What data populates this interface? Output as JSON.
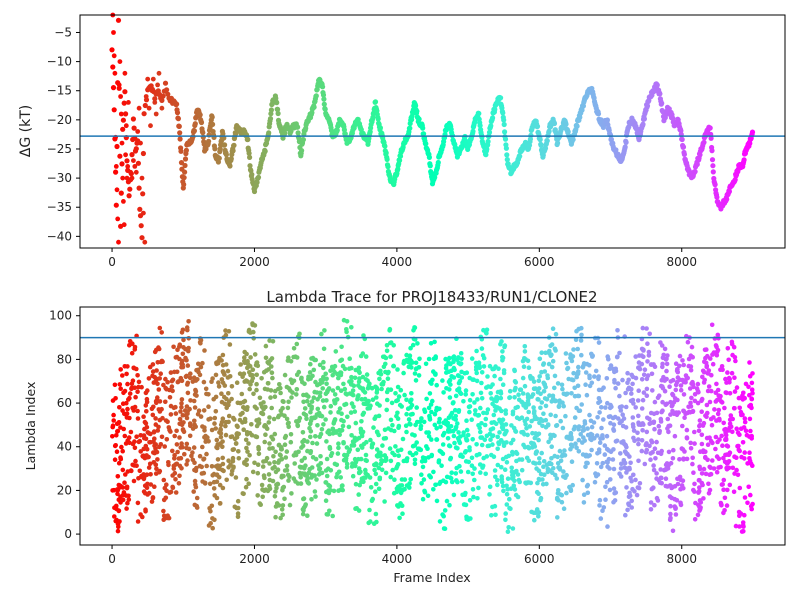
{
  "chart_data": [
    {
      "type": "scatter",
      "title": "",
      "xlabel": "",
      "ylabel": "ΔG (kT)",
      "xlim": [
        -450,
        9450
      ],
      "ylim": [
        -42,
        -2
      ],
      "xticks": [
        0,
        2000,
        4000,
        6000,
        8000
      ],
      "yticks": [
        -5,
        -10,
        -15,
        -20,
        -25,
        -30,
        -35,
        -40
      ],
      "hline": -22.8,
      "hline_color": "#1f77b4",
      "colormap": "rainbow",
      "color_encodes": "frame index (late = violet, early = red)",
      "trace_points": [
        [
          0,
          -8
        ],
        [
          30,
          -18
        ],
        [
          60,
          -35
        ],
        [
          90,
          -3
        ],
        [
          120,
          -38
        ],
        [
          150,
          -22
        ],
        [
          180,
          -15
        ],
        [
          210,
          -27
        ],
        [
          240,
          -33
        ],
        [
          270,
          -29
        ],
        [
          300,
          -20
        ],
        [
          330,
          -25
        ],
        [
          360,
          -24
        ],
        [
          390,
          -35
        ],
        [
          420,
          -40
        ],
        [
          450,
          -19
        ],
        [
          500,
          -15
        ],
        [
          550,
          -14
        ],
        [
          600,
          -16
        ],
        [
          650,
          -15
        ],
        [
          700,
          -17
        ],
        [
          750,
          -14
        ],
        [
          800,
          -16
        ],
        [
          850,
          -17
        ],
        [
          900,
          -17
        ],
        [
          950,
          -22
        ],
        [
          1000,
          -32
        ],
        [
          1050,
          -24
        ],
        [
          1100,
          -24
        ],
        [
          1150,
          -22
        ],
        [
          1200,
          -18
        ],
        [
          1250,
          -20
        ],
        [
          1300,
          -25
        ],
        [
          1350,
          -24
        ],
        [
          1400,
          -19
        ],
        [
          1450,
          -26
        ],
        [
          1500,
          -27
        ],
        [
          1550,
          -22
        ],
        [
          1600,
          -26
        ],
        [
          1650,
          -28
        ],
        [
          1700,
          -25
        ],
        [
          1750,
          -21
        ],
        [
          1800,
          -22
        ],
        [
          1850,
          -22
        ],
        [
          1900,
          -23
        ],
        [
          1950,
          -29
        ],
        [
          2000,
          -32
        ],
        [
          2050,
          -30
        ],
        [
          2100,
          -27
        ],
        [
          2150,
          -25
        ],
        [
          2200,
          -22
        ],
        [
          2250,
          -17
        ],
        [
          2300,
          -16
        ],
        [
          2350,
          -21
        ],
        [
          2400,
          -23
        ],
        [
          2450,
          -21
        ],
        [
          2500,
          -22
        ],
        [
          2550,
          -21
        ],
        [
          2600,
          -21
        ],
        [
          2650,
          -26
        ],
        [
          2700,
          -22
        ],
        [
          2750,
          -20
        ],
        [
          2800,
          -19
        ],
        [
          2850,
          -17
        ],
        [
          2900,
          -13
        ],
        [
          2950,
          -14
        ],
        [
          3000,
          -19
        ],
        [
          3050,
          -20
        ],
        [
          3100,
          -23
        ],
        [
          3150,
          -22
        ],
        [
          3200,
          -20
        ],
        [
          3250,
          -21
        ],
        [
          3300,
          -24
        ],
        [
          3350,
          -23
        ],
        [
          3400,
          -21
        ],
        [
          3450,
          -20
        ],
        [
          3500,
          -22
        ],
        [
          3550,
          -23
        ],
        [
          3600,
          -24
        ],
        [
          3650,
          -20
        ],
        [
          3700,
          -17
        ],
        [
          3750,
          -21
        ],
        [
          3800,
          -23
        ],
        [
          3850,
          -26
        ],
        [
          3900,
          -30
        ],
        [
          3950,
          -31
        ],
        [
          4000,
          -29
        ],
        [
          4050,
          -26
        ],
        [
          4100,
          -24
        ],
        [
          4150,
          -23
        ],
        [
          4200,
          -20
        ],
        [
          4250,
          -17
        ],
        [
          4300,
          -20
        ],
        [
          4350,
          -21
        ],
        [
          4400,
          -24
        ],
        [
          4450,
          -26
        ],
        [
          4500,
          -31
        ],
        [
          4550,
          -29
        ],
        [
          4600,
          -26
        ],
        [
          4650,
          -24
        ],
        [
          4700,
          -21
        ],
        [
          4750,
          -21
        ],
        [
          4800,
          -24
        ],
        [
          4850,
          -26
        ],
        [
          4900,
          -25
        ],
        [
          4950,
          -23
        ],
        [
          5000,
          -25
        ],
        [
          5050,
          -23
        ],
        [
          5100,
          -20
        ],
        [
          5150,
          -19
        ],
        [
          5200,
          -24
        ],
        [
          5250,
          -26
        ],
        [
          5300,
          -22
        ],
        [
          5350,
          -19
        ],
        [
          5400,
          -17
        ],
        [
          5450,
          -16
        ],
        [
          5500,
          -20
        ],
        [
          5550,
          -27
        ],
        [
          5600,
          -29
        ],
        [
          5650,
          -28
        ],
        [
          5700,
          -27
        ],
        [
          5750,
          -25
        ],
        [
          5800,
          -24
        ],
        [
          5850,
          -25
        ],
        [
          5900,
          -21
        ],
        [
          5950,
          -20
        ],
        [
          6000,
          -23
        ],
        [
          6050,
          -26
        ],
        [
          6100,
          -24
        ],
        [
          6150,
          -21
        ],
        [
          6200,
          -20
        ],
        [
          6250,
          -24
        ],
        [
          6300,
          -22
        ],
        [
          6350,
          -20
        ],
        [
          6400,
          -22
        ],
        [
          6450,
          -24
        ],
        [
          6500,
          -22
        ],
        [
          6550,
          -20
        ],
        [
          6600,
          -18
        ],
        [
          6650,
          -16
        ],
        [
          6700,
          -15
        ],
        [
          6750,
          -15
        ],
        [
          6800,
          -18
        ],
        [
          6850,
          -20
        ],
        [
          6900,
          -21
        ],
        [
          6950,
          -20
        ],
        [
          7000,
          -23
        ],
        [
          7050,
          -25
        ],
        [
          7100,
          -26
        ],
        [
          7150,
          -27
        ],
        [
          7200,
          -25
        ],
        [
          7250,
          -21
        ],
        [
          7300,
          -20
        ],
        [
          7350,
          -21
        ],
        [
          7400,
          -23
        ],
        [
          7450,
          -21
        ],
        [
          7500,
          -18
        ],
        [
          7550,
          -16
        ],
        [
          7600,
          -15
        ],
        [
          7650,
          -14
        ],
        [
          7700,
          -16
        ],
        [
          7750,
          -20
        ],
        [
          7800,
          -18
        ],
        [
          7850,
          -19
        ],
        [
          7900,
          -21
        ],
        [
          7950,
          -20
        ],
        [
          8000,
          -23
        ],
        [
          8050,
          -27
        ],
        [
          8100,
          -29
        ],
        [
          8150,
          -30
        ],
        [
          8200,
          -28
        ],
        [
          8250,
          -26
        ],
        [
          8300,
          -24
        ],
        [
          8350,
          -22
        ],
        [
          8400,
          -21
        ],
        [
          8450,
          -30
        ],
        [
          8500,
          -34
        ],
        [
          8550,
          -35
        ],
        [
          8600,
          -34
        ],
        [
          8650,
          -33
        ],
        [
          8700,
          -31
        ],
        [
          8750,
          -30
        ],
        [
          8800,
          -28
        ],
        [
          8850,
          -28
        ],
        [
          8900,
          -25
        ],
        [
          8950,
          -24
        ],
        [
          9000,
          -22
        ]
      ],
      "early_scatter": [
        [
          10,
          -2
        ],
        [
          20,
          -5
        ],
        [
          30,
          -9
        ],
        [
          40,
          -12
        ],
        [
          50,
          -23
        ],
        [
          60,
          -28
        ],
        [
          70,
          -32
        ],
        [
          80,
          -37
        ],
        [
          90,
          -41
        ],
        [
          100,
          -14
        ],
        [
          110,
          -10
        ],
        [
          120,
          -16
        ],
        [
          130,
          -19
        ],
        [
          140,
          -24
        ],
        [
          150,
          -30
        ],
        [
          160,
          -34
        ],
        [
          170,
          -38
        ],
        [
          180,
          -12
        ],
        [
          190,
          -26
        ],
        [
          200,
          -21
        ],
        [
          210,
          -30
        ],
        [
          220,
          -28
        ],
        [
          230,
          -17
        ],
        [
          240,
          -33
        ],
        [
          260,
          -29
        ],
        [
          280,
          -30
        ],
        [
          300,
          -27
        ],
        [
          320,
          -28
        ],
        [
          340,
          -29
        ],
        [
          360,
          -22
        ],
        [
          380,
          -18
        ],
        [
          400,
          -24
        ],
        [
          420,
          -30
        ],
        [
          440,
          -36
        ],
        [
          460,
          -41
        ],
        [
          480,
          -16
        ],
        [
          500,
          -13
        ],
        [
          520,
          -18
        ],
        [
          540,
          -21
        ],
        [
          560,
          -15
        ],
        [
          580,
          -13
        ],
        [
          600,
          -17
        ],
        [
          620,
          -19
        ],
        [
          640,
          -14
        ],
        [
          660,
          -12
        ],
        [
          680,
          -16
        ],
        [
          700,
          -18
        ]
      ]
    },
    {
      "type": "scatter",
      "title": "Lambda Trace for PROJ18433/RUN1/CLONE2",
      "xlabel": "Frame Index",
      "ylabel": "Lambda Index",
      "xlim": [
        -450,
        9450
      ],
      "ylim": [
        -5,
        104
      ],
      "xticks": [
        0,
        2000,
        4000,
        6000,
        8000
      ],
      "yticks": [
        0,
        20,
        40,
        60,
        80,
        100
      ],
      "hline": 90,
      "hline_color": "#1f77b4",
      "colormap": "rainbow",
      "color_encodes": "frame index (late = violet, early = red)",
      "n_points": 3000,
      "x_range": [
        0,
        9000
      ],
      "y_range": [
        0,
        99
      ]
    }
  ],
  "style": {
    "axis_color": "#000000",
    "background": "#ffffff"
  }
}
